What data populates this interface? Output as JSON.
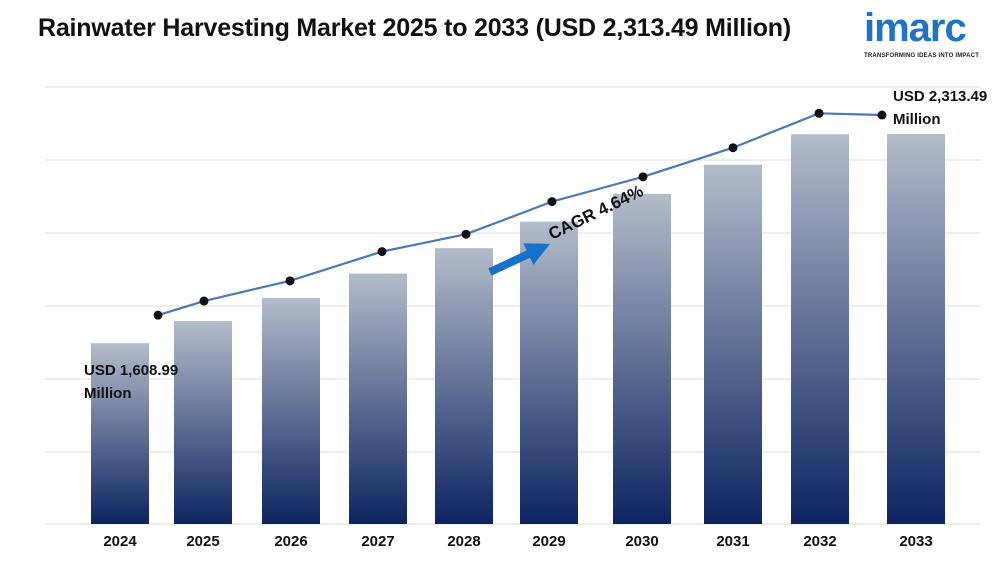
{
  "header": {
    "title": "Rainwater Harvesting Market 2025 to 2033 (USD 2,313.49 Million)"
  },
  "logo": {
    "wordmark": "imarc",
    "tagline": "TRANSFORMING IDEAS INTO IMPACT",
    "color": "#1f73c4"
  },
  "colors": {
    "bar_top": "#b3bcca",
    "bar_bottom": "#0d2461",
    "line": "#4a78b8",
    "marker": "#111111",
    "arrow": "#1573c7",
    "grid": "#dddddd"
  },
  "chart_data": {
    "type": "bar",
    "title": "Rainwater Harvesting Market 2025 to 2033 (USD 2,313.49 Million)",
    "categories": [
      "2024",
      "2025",
      "2026",
      "2027",
      "2028",
      "2029",
      "2030",
      "2031",
      "2032",
      "2033"
    ],
    "values": [
      1608.99,
      1683.6,
      1761.7,
      1843.4,
      1928.9,
      2018.4,
      2112.0,
      2210.0,
      2312.5,
      2313.49
    ],
    "line_values": [
      1608.99,
      1683.6,
      1761.7,
      1843.4,
      1928.9,
      2018.4,
      2112.0,
      2210.0,
      2312.5,
      2313.49
    ],
    "ylim": [
      1000,
      2313.49
    ],
    "grid": true,
    "annotations": {
      "start_value": "USD 1,608.99",
      "start_unit": "Million",
      "end_value": "USD 2,313.49",
      "end_unit": "Million",
      "cagr": "CAGR 4.64%"
    }
  }
}
